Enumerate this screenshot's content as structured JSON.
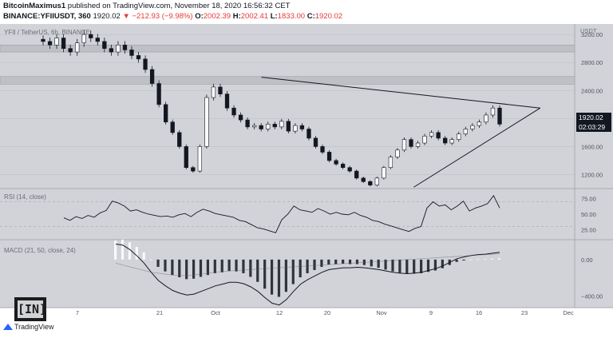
{
  "header": {
    "author": "BitcoinMaximus1",
    "published": "published on TradingView.com, November 18, 2020 16:56:32 CET",
    "symbol": "BINANCE:YFIIUSDT, 360",
    "last": "1920.02",
    "change": "▼ −212.93 (−9.98%)",
    "o_label": "O:",
    "o_value": "2002.39",
    "h_label": "H:",
    "h_value": "2002.41",
    "l_label": "L:",
    "l_value": "1833.00",
    "c_label": "C:",
    "c_value": "1920.02"
  },
  "colors": {
    "background": "#d2d3d8",
    "candle": "#131722",
    "line": "#131722",
    "resistance_zone": "#bfc0c6",
    "grid": "#bcbdc2",
    "price_tag": "#131722"
  },
  "chart_data": [
    {
      "type": "candlestick",
      "title": "YFII / TetherUS, 6h, BINANCE",
      "ylabel": "USDT",
      "x_ticks": [
        "7",
        "21",
        "Oct",
        "12",
        "20",
        "Nov",
        "9",
        "16",
        "23",
        "Dec"
      ],
      "y_ticks": [
        1200,
        1600,
        2000,
        2400,
        2800,
        3200
      ],
      "y_tick_labels": [
        "1200.00",
        "1600.00",
        "2000.00",
        "2400.00",
        "2800.00",
        "3200.00"
      ],
      "ylim": [
        1000,
        3350
      ],
      "last_price_label": "1920.02",
      "countdown_label": "02:03:29",
      "close_series": [
        3100,
        3050,
        3150,
        3000,
        2950,
        3080,
        3200,
        3150,
        3100,
        3000,
        2950,
        3050,
        2980,
        2900,
        2850,
        2700,
        2500,
        2200,
        1950,
        1800,
        1600,
        1300,
        1250,
        1600,
        2300,
        2450,
        2350,
        2150,
        2050,
        1980,
        1880,
        1900,
        1850,
        1920,
        1880,
        1960,
        1820,
        1900,
        1850,
        1720,
        1600,
        1520,
        1400,
        1350,
        1300,
        1250,
        1150,
        1100,
        1050,
        1150,
        1300,
        1450,
        1550,
        1700,
        1600,
        1650,
        1750,
        1800,
        1720,
        1650,
        1700,
        1780,
        1850,
        1900,
        1950,
        2050,
        2150,
        1920
      ],
      "annotations": {
        "resistance_zones": [
          [
            2950,
            3050
          ],
          [
            2490,
            2600
          ]
        ],
        "descending_trendline": [
          [
            0.455,
            2590
          ],
          [
            0.94,
            2150
          ]
        ],
        "ascending_trendline": [
          [
            0.72,
            1020
          ],
          [
            0.94,
            2150
          ]
        ]
      }
    },
    {
      "type": "line",
      "title": "RSI (14, close)",
      "y_ticks": [
        25,
        50,
        75
      ],
      "y_tick_labels": [
        "25.00",
        "50.00",
        "75.00"
      ],
      "ylim": [
        10,
        90
      ],
      "reference_lines": [
        30,
        70
      ],
      "values": [
        44,
        40,
        46,
        43,
        48,
        45,
        52,
        56,
        71,
        68,
        63,
        55,
        57,
        53,
        50,
        48,
        46,
        47,
        45,
        49,
        51,
        46,
        53,
        58,
        55,
        51,
        49,
        47,
        45,
        40,
        38,
        33,
        28,
        26,
        23,
        20,
        41,
        50,
        63,
        57,
        55,
        53,
        59,
        55,
        50,
        53,
        50,
        49,
        53,
        48,
        45,
        40,
        38,
        34,
        31,
        28,
        25,
        22,
        27,
        30,
        60,
        70,
        63,
        65,
        57,
        63,
        71,
        55,
        60,
        63,
        67,
        80,
        60
      ]
    },
    {
      "type": "macd",
      "title": "MACD (21, 50, close, 24)",
      "y_ticks": [
        0,
        -400
      ],
      "y_tick_labels": [
        "0.00",
        "−400.00"
      ],
      "ylim": [
        -520,
        210
      ],
      "macd_line": [
        170,
        160,
        110,
        40,
        -40,
        -140,
        -230,
        -290,
        -340,
        -370,
        -390,
        -380,
        -350,
        -320,
        -290,
        -270,
        -250,
        -250,
        -265,
        -300,
        -350,
        -420,
        -480,
        -500,
        -440,
        -350,
        -270,
        -220,
        -180,
        -140,
        -110,
        -100,
        -90,
        -90,
        -85,
        -90,
        -100,
        -110,
        -125,
        -140,
        -150,
        -155,
        -150,
        -140,
        -120,
        -100,
        -70,
        -30,
        10,
        30,
        45,
        55,
        60,
        70,
        80
      ],
      "signal_line": [
        -40,
        -60,
        -80,
        -100,
        -120,
        -140,
        -150,
        -160,
        -170,
        -175,
        -175,
        -170,
        -160,
        -150,
        -140,
        -130,
        -125,
        -120,
        -115,
        -110,
        -105,
        -100,
        -95,
        -90,
        -85,
        -80,
        -75,
        -70,
        -65,
        -60,
        -55,
        -50,
        -45,
        -40,
        -35,
        -30,
        -25,
        -20,
        -15,
        -10,
        -5,
        0,
        5,
        10,
        15,
        20,
        25,
        30,
        35,
        40,
        45,
        50,
        55,
        60,
        65
      ]
    }
  ],
  "branding": {
    "watermark": "[IN]",
    "tradingview": "TradingView"
  }
}
